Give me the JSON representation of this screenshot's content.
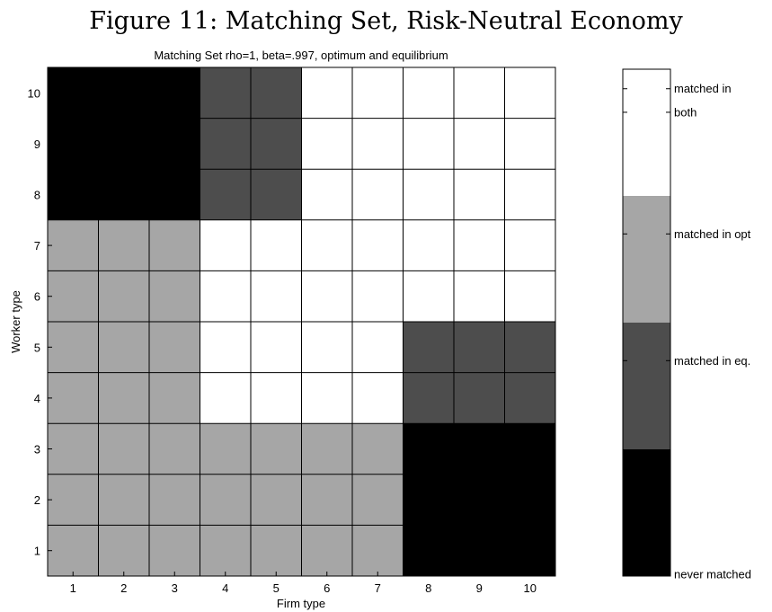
{
  "figure_title": "Figure 11: Matching Set, Risk-Neutral Economy",
  "chart_data": {
    "type": "heatmap",
    "title": "Matching Set rho=1, beta=.997, optimum and equilibrium",
    "xlabel": "Firm type",
    "ylabel": "Worker type",
    "x": [
      1,
      2,
      3,
      4,
      5,
      6,
      7,
      8,
      9,
      10
    ],
    "y": [
      1,
      2,
      3,
      4,
      5,
      6,
      7,
      8,
      9,
      10
    ],
    "xlim": [
      0.5,
      10.5
    ],
    "ylim": [
      0.5,
      10.5
    ],
    "xticks": [
      "1",
      "2",
      "3",
      "4",
      "5",
      "6",
      "7",
      "8",
      "9",
      "10"
    ],
    "yticks": [
      "1",
      "2",
      "3",
      "4",
      "5",
      "6",
      "7",
      "8",
      "9",
      "10"
    ],
    "grid": true,
    "legend_note": "values: 0 = never matched, 1 = matched in eq., 2 = matched in opt, 3 = matched in both",
    "z_rows_by_worker_type": [
      [
        2,
        2,
        2,
        2,
        2,
        2,
        2,
        0,
        0,
        0
      ],
      [
        2,
        2,
        2,
        2,
        2,
        2,
        2,
        0,
        0,
        0
      ],
      [
        2,
        2,
        2,
        2,
        2,
        2,
        2,
        0,
        0,
        0
      ],
      [
        2,
        2,
        2,
        3,
        3,
        3,
        3,
        1,
        1,
        1
      ],
      [
        2,
        2,
        2,
        3,
        3,
        3,
        3,
        1,
        1,
        1
      ],
      [
        2,
        2,
        2,
        3,
        3,
        3,
        3,
        3,
        3,
        3
      ],
      [
        2,
        2,
        2,
        3,
        3,
        3,
        3,
        3,
        3,
        3
      ],
      [
        0,
        0,
        0,
        1,
        1,
        3,
        3,
        3,
        3,
        3
      ],
      [
        0,
        0,
        0,
        1,
        1,
        3,
        3,
        3,
        3,
        3
      ],
      [
        0,
        0,
        0,
        1,
        1,
        3,
        3,
        3,
        3,
        3
      ]
    ],
    "colormap": [
      {
        "value": 0,
        "color": "#000000"
      },
      {
        "value": 1,
        "color": "#4d4d4d"
      },
      {
        "value": 2,
        "color": "#a6a6a6"
      },
      {
        "value": 3,
        "color": "#ffffff"
      }
    ],
    "colorbar_labels": [
      "never matched",
      "matched in eq.",
      "matched in opt",
      "matched in",
      "both"
    ]
  }
}
